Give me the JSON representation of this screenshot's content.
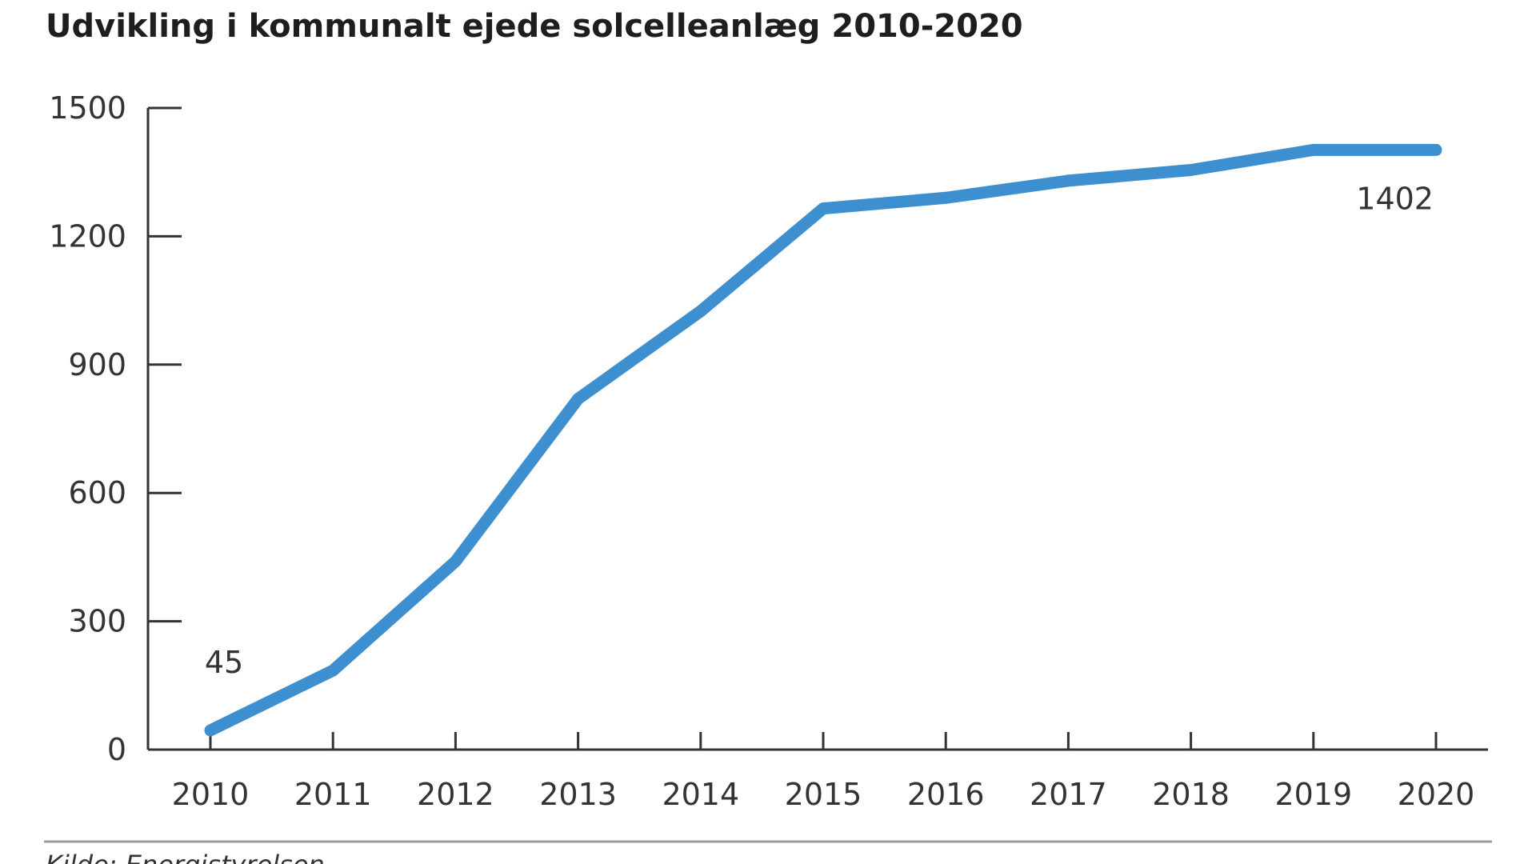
{
  "chart_data": {
    "type": "line",
    "title": "Udvikling i kommunalt ejede solcelleanlæg 2010-2020",
    "xlabel": "",
    "ylabel": "",
    "x": [
      2010,
      2011,
      2012,
      2013,
      2014,
      2015,
      2016,
      2017,
      2018,
      2019,
      2020
    ],
    "x_tick_labels": [
      "2010",
      "2011",
      "2012",
      "2013",
      "2014",
      "2015",
      "2016",
      "2017",
      "2018",
      "2019",
      "2020"
    ],
    "ylim": [
      0,
      1500
    ],
    "y_ticks": [
      0,
      300,
      600,
      900,
      1200,
      1500
    ],
    "y_tick_labels": [
      "0",
      "300",
      "600",
      "900",
      "1200",
      "1500"
    ],
    "series": [
      {
        "values": [
          45,
          185,
          440,
          820,
          1025,
          1265,
          1290,
          1330,
          1355,
          1402,
          1402
        ],
        "color": "#3d8fcf"
      }
    ],
    "annotations": [
      {
        "text": "45",
        "x": 2010,
        "y": 45
      },
      {
        "text": "1402",
        "x": 2020,
        "y": 1402
      }
    ],
    "grid": false,
    "legend": "none",
    "source": "Kilde: Energistyrelsen"
  }
}
